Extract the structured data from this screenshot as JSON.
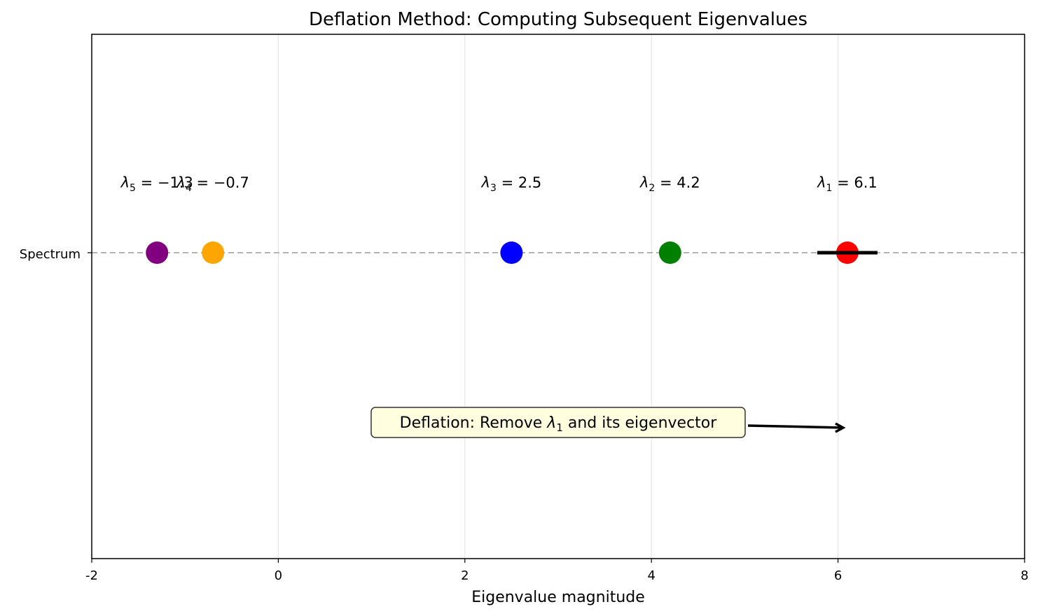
{
  "chart_data": {
    "type": "scatter",
    "title": "Deflation Method: Computing Subsequent Eigenvalues",
    "xlabel": "Eigenvalue magnitude",
    "ylabel": "",
    "xlim": [
      -2,
      8
    ],
    "x_ticks": [
      "-2",
      "0",
      "2",
      "4",
      "6",
      "8"
    ],
    "x_tick_values": [
      -2,
      0,
      2,
      4,
      6,
      8
    ],
    "y_tick_label": "Spectrum",
    "grid": "vertical",
    "baseline": "dashed gray line",
    "points": [
      {
        "x": 6.1,
        "label_sub": "1",
        "label_value": "6.1",
        "color": "#ff0000",
        "highlighted": true
      },
      {
        "x": 4.2,
        "label_sub": "2",
        "label_value": "4.2",
        "color": "#008000",
        "highlighted": false
      },
      {
        "x": 2.5,
        "label_sub": "3",
        "label_value": "2.5",
        "color": "#0000ff",
        "highlighted": false
      },
      {
        "x": -0.7,
        "label_sub": "4",
        "label_value": "−0.7",
        "color": "#ffa500",
        "highlighted": false
      },
      {
        "x": -1.3,
        "label_sub": "5",
        "label_value": "−1.3",
        "color": "#800080",
        "highlighted": false
      }
    ],
    "annotation": {
      "text_before": "Deflation: Remove ",
      "symbol": "λ",
      "subscript": "1",
      "text_after": " and its eigenvector",
      "box_color": "#ffffe0",
      "arrow_target_x": 6.1
    }
  }
}
